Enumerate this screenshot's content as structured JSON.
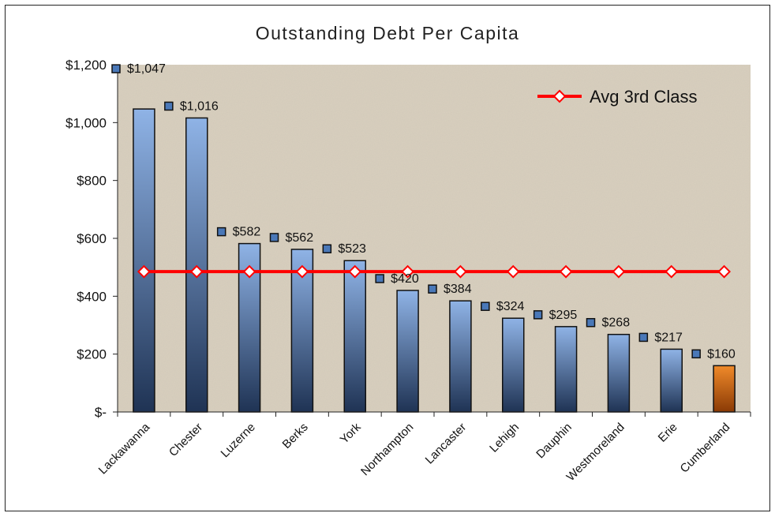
{
  "chart_data": {
    "type": "bar",
    "title": "Outstanding Debt Per Capita",
    "categories": [
      "Lackawanna",
      "Chester",
      "Luzerne",
      "Berks",
      "York",
      "Northampton",
      "Lancaster",
      "Lehigh",
      "Dauphin",
      "Westmoreland",
      "Erie",
      "Cumberland"
    ],
    "series": [
      {
        "values": [
          1047,
          1016,
          582,
          562,
          523,
          420,
          384,
          324,
          295,
          268,
          217,
          160
        ],
        "data_labels": [
          "$1,047",
          "$1,016",
          "$582",
          "$562",
          "$523",
          "$420",
          "$384",
          "$324",
          "$295",
          "$268",
          "$217",
          "$160"
        ],
        "color": "#8fb3e6",
        "color_dark": "#1f3354",
        "highlight_color": "#e07a1c",
        "highlight_index": 11
      },
      {
        "name": "Avg 3rd Class",
        "type": "line",
        "values": [
          485,
          485,
          485,
          485,
          485,
          485,
          485,
          485,
          485,
          485,
          485,
          485
        ],
        "color": "#ff0000"
      }
    ],
    "ylim": [
      0,
      1200
    ],
    "yticks": [
      0,
      200,
      400,
      600,
      800,
      1000,
      1200
    ],
    "ytick_labels": [
      "$-",
      "$200",
      "$400",
      "$600",
      "$800",
      "$1,000",
      "$1,200"
    ],
    "legend_position": "top-right",
    "plot_background": "#d9d0bf"
  }
}
